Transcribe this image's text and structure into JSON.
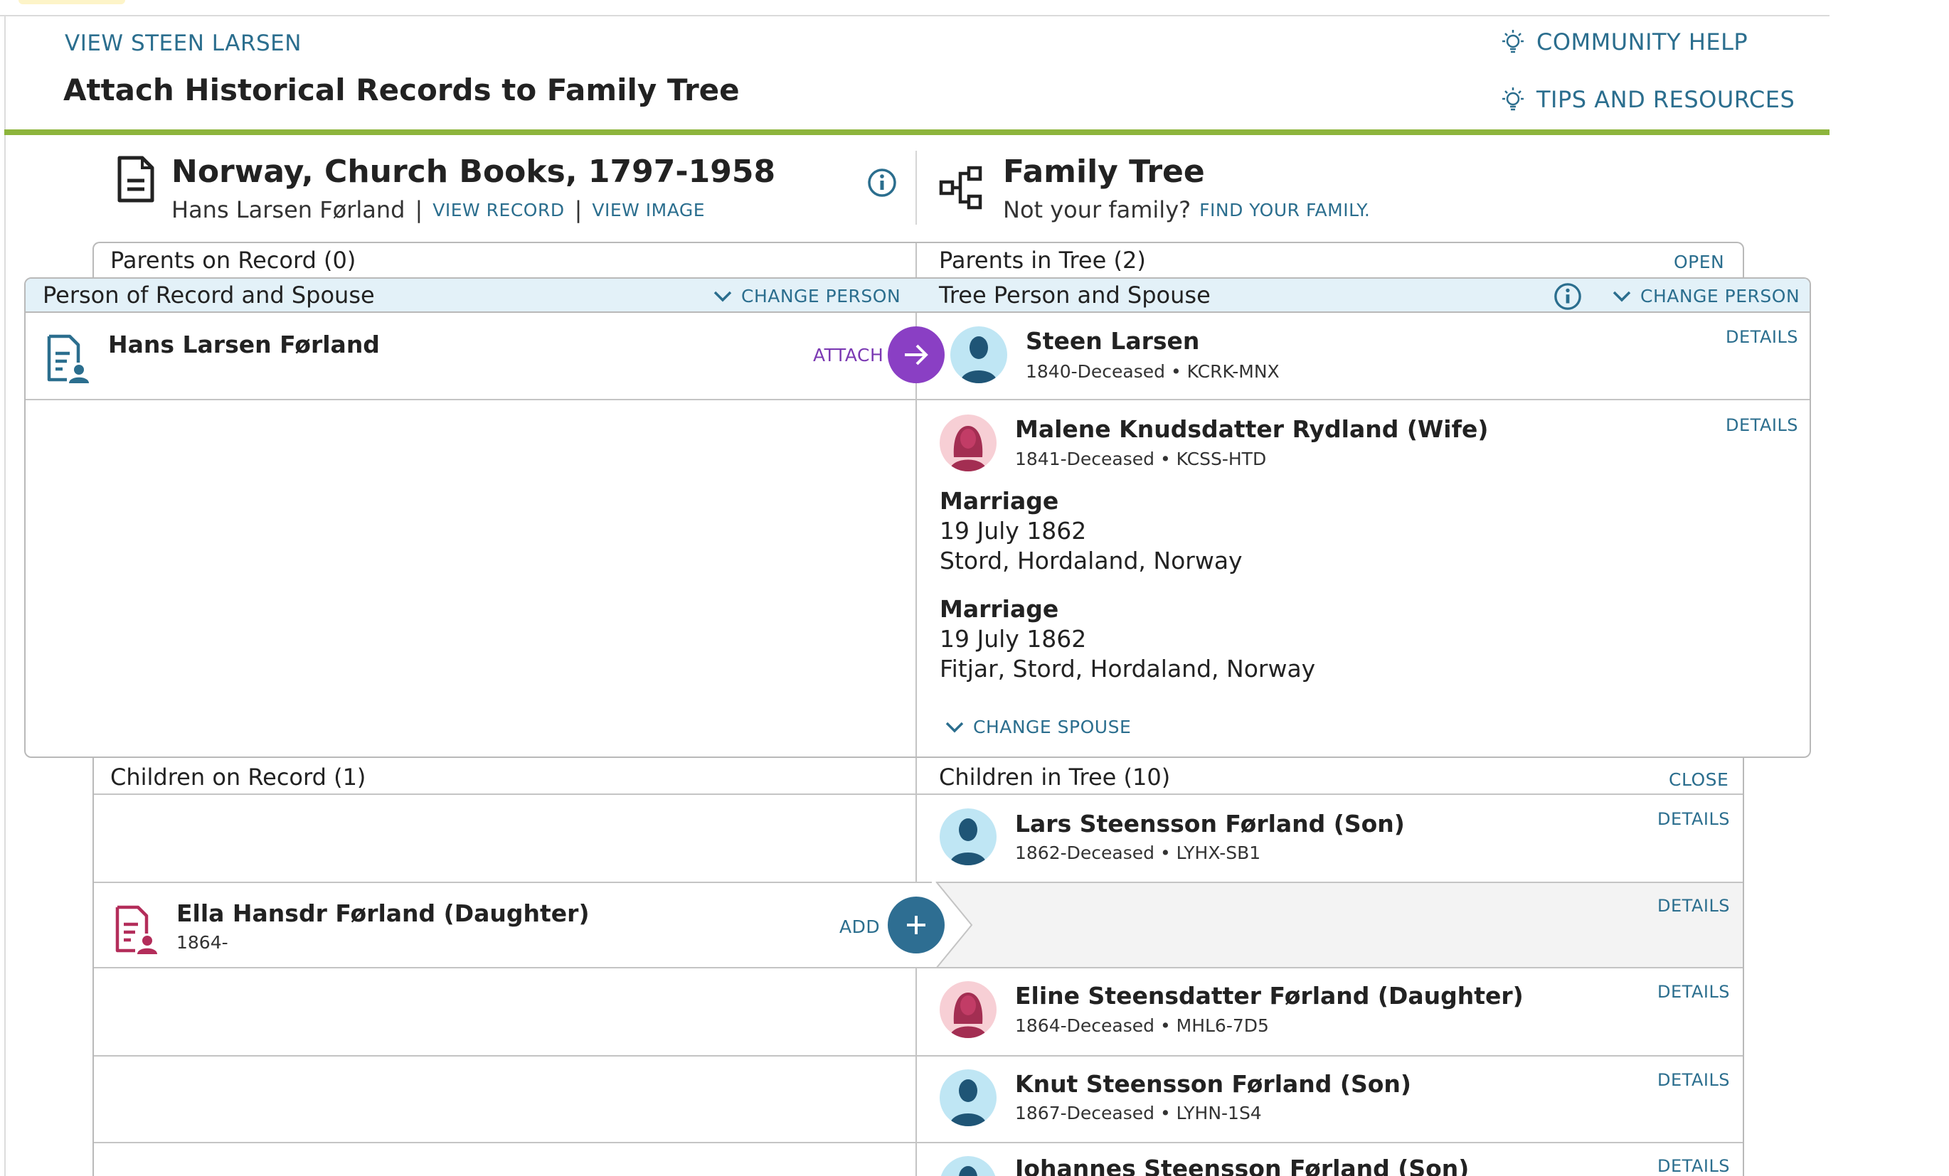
{
  "header": {
    "view_person": "VIEW STEEN LARSEN",
    "page_title": "Attach Historical Records to Family Tree",
    "community_help": "COMMUNITY HELP",
    "tips_resources": "TIPS AND RESOURCES"
  },
  "record": {
    "title": "Norway, Church Books, 1797-1958",
    "person": "Hans Larsen Førland",
    "separator": "|",
    "view_record": "VIEW RECORD",
    "view_image": "VIEW IMAGE"
  },
  "tree": {
    "title": "Family Tree",
    "not_family": "Not your family?",
    "find_family": "FIND YOUR FAMILY."
  },
  "parents": {
    "record_label": "Parents on Record (0)",
    "tree_label": "Parents in Tree (2)",
    "open": "OPEN"
  },
  "person_section": {
    "record_label": "Person of Record and Spouse",
    "record_change": "CHANGE PERSON",
    "tree_label": "Tree Person and Spouse",
    "tree_change": "CHANGE PERSON"
  },
  "record_person": {
    "name": "Hans Larsen Førland",
    "attach": "ATTACH"
  },
  "tree_person": {
    "name": "Steen Larsen",
    "meta": "1840-Deceased • KCRK-MNX",
    "details": "DETAILS"
  },
  "spouse": {
    "name": "Malene Knudsdatter Rydland (Wife)",
    "meta": "1841-Deceased • KCSS-HTD",
    "details": "DETAILS",
    "events": [
      {
        "title": "Marriage",
        "date": "19 July 1862",
        "place": "Stord, Hordaland, Norway"
      },
      {
        "title": "Marriage",
        "date": "19 July 1862",
        "place": "Fitjar, Stord, Hordaland, Norway"
      }
    ],
    "change_spouse": "CHANGE SPOUSE"
  },
  "children": {
    "record_label": "Children on Record (1)",
    "tree_label": "Children in Tree (10)",
    "close": "CLOSE",
    "record_child": {
      "name": "Ella Hansdr Førland (Daughter)",
      "meta": "1864-",
      "add": "ADD"
    },
    "tree_children": [
      {
        "name": "Lars Steensson Førland (Son)",
        "meta": "1862-Deceased • LYHX-SB1",
        "details": "DETAILS"
      },
      {
        "name": "",
        "meta": "",
        "details": "DETAILS"
      },
      {
        "name": "Eline Steensdatter Førland (Daughter)",
        "meta": "1864-Deceased • MHL6-7D5",
        "details": "DETAILS"
      },
      {
        "name": "Knut Steensson Førland (Son)",
        "meta": "1867-Deceased • LYHN-1S4",
        "details": "DETAILS"
      },
      {
        "name": "Johannes Steensson Førland (Son)",
        "meta": "",
        "details": "DETAILS"
      }
    ]
  },
  "colors": {
    "accent_green": "#8db53c",
    "link_blue": "#2b6e8e",
    "attach_purple": "#7b39b3",
    "header_blue": "#e3f1f8",
    "male_avatar_bg": "#bfe6f4",
    "female_avatar_bg": "#f7cfd5"
  }
}
